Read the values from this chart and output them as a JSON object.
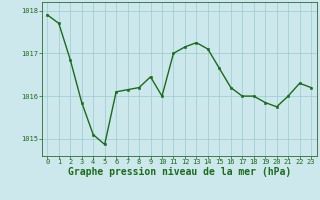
{
  "x": [
    0,
    1,
    2,
    3,
    4,
    5,
    6,
    7,
    8,
    9,
    10,
    11,
    12,
    13,
    14,
    15,
    16,
    17,
    18,
    19,
    20,
    21,
    22,
    23
  ],
  "y": [
    1017.9,
    1017.7,
    1016.85,
    1015.85,
    1015.1,
    1014.87,
    1016.1,
    1016.15,
    1016.2,
    1016.45,
    1016.0,
    1017.0,
    1017.15,
    1017.25,
    1017.1,
    1016.65,
    1016.2,
    1016.0,
    1016.0,
    1015.85,
    1015.75,
    1016.0,
    1016.3,
    1016.2
  ],
  "line_color": "#1a6b1a",
  "marker_color": "#1a6b1a",
  "bg_color": "#cce8ec",
  "grid_color": "#99cccc",
  "border_color": "#336633",
  "xlabel": "Graphe pression niveau de la mer (hPa)",
  "xlabel_color": "#1a6b1a",
  "ylim": [
    1014.6,
    1018.2
  ],
  "yticks": [
    1015,
    1016,
    1017,
    1018
  ],
  "xticks": [
    0,
    1,
    2,
    3,
    4,
    5,
    6,
    7,
    8,
    9,
    10,
    11,
    12,
    13,
    14,
    15,
    16,
    17,
    18,
    19,
    20,
    21,
    22,
    23
  ],
  "tick_color": "#1a6b1a",
  "tick_fontsize": 5.0,
  "xlabel_fontsize": 7.0,
  "marker_size": 2.0,
  "line_width": 1.0
}
